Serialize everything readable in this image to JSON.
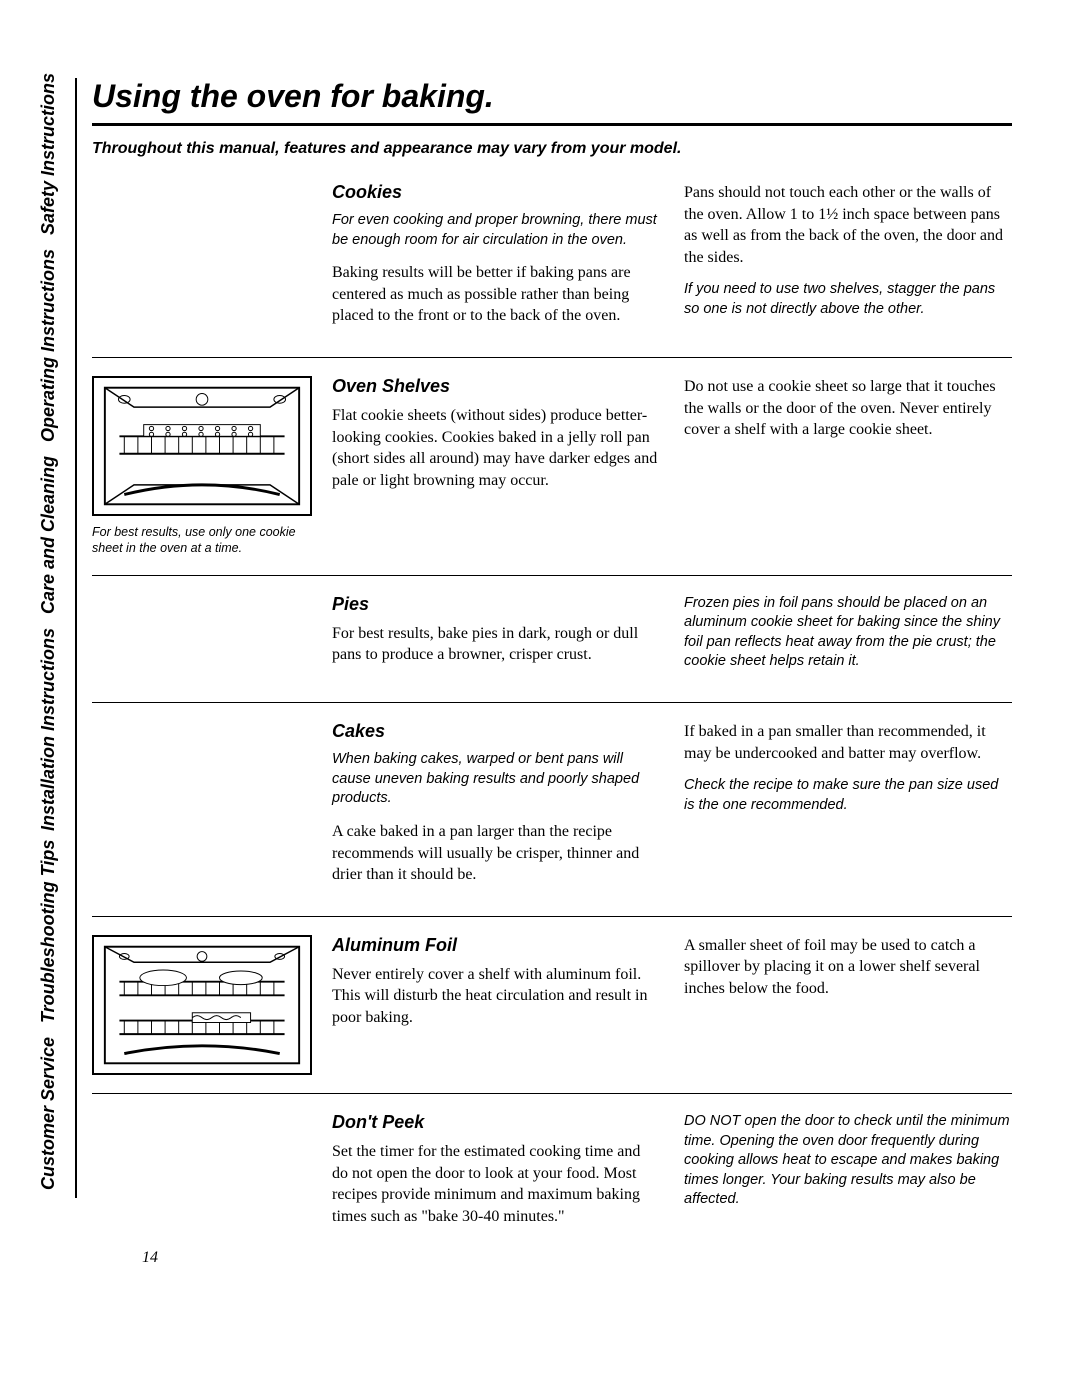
{
  "page_number": "14",
  "title": "Using the oven for baking.",
  "intro": "Throughout this manual, features and appearance may vary from your model.",
  "sidebar": {
    "labels": [
      "Safety Instructions",
      "Operating Instructions",
      "Care and Cleaning",
      "Installation Instructions",
      "Troubleshooting Tips",
      "Customer Service"
    ]
  },
  "colors": {
    "text": "#000000",
    "background": "#ffffff",
    "rule": "#000000"
  },
  "sections": [
    {
      "id": "cookies",
      "heading": "Cookies",
      "figure": null,
      "left": [
        {
          "style": "em",
          "text": "For even cooking and proper browning, there must be enough room for air circulation in the oven."
        },
        {
          "style": "body",
          "text": "Baking results will be better if baking pans are centered as much as possible rather than being placed to the front or to the back of the oven."
        }
      ],
      "right": [
        {
          "style": "body",
          "text": "Pans should not touch each other or the walls of the oven. Allow 1 to 1½ inch space between pans as well as from the back of the oven, the door and the sides."
        },
        {
          "style": "em",
          "text": "If you need to use two shelves, stagger the pans so one is not directly above the other."
        }
      ]
    },
    {
      "id": "oven-shelves",
      "heading": "Oven Shelves",
      "figure": {
        "kind": "single-rack",
        "caption": "For best results, use only one cookie sheet in the oven at a time."
      },
      "left": [
        {
          "style": "body",
          "text": "Flat cookie sheets (without sides) produce better-looking cookies. Cookies baked in a jelly roll pan (short sides all around) may have darker edges and pale or light browning may occur."
        }
      ],
      "right": [
        {
          "style": "body",
          "text": "Do not use a cookie sheet so large that it touches the walls or the door of the oven. Never entirely cover a shelf with a large cookie sheet."
        }
      ]
    },
    {
      "id": "pies",
      "heading": "Pies",
      "figure": null,
      "left": [
        {
          "style": "body",
          "text": "For best results, bake pies in dark, rough or dull pans to produce a browner, crisper crust."
        }
      ],
      "right": [
        {
          "style": "em",
          "text": "Frozen pies in foil pans should be placed on an aluminum cookie sheet for baking since the shiny foil pan reflects heat away from the pie crust; the cookie sheet helps retain it."
        }
      ]
    },
    {
      "id": "cakes",
      "heading": "Cakes",
      "figure": null,
      "left": [
        {
          "style": "em",
          "text": "When baking cakes, warped or bent pans will cause uneven baking results and poorly shaped products."
        },
        {
          "style": "body",
          "text": "A cake baked in a pan larger than the recipe recommends will usually be crisper, thinner and drier than it should be."
        }
      ],
      "right": [
        {
          "style": "body",
          "text": "If baked in a pan smaller than recommended, it may be undercooked and batter may overflow."
        },
        {
          "style": "em",
          "text": "Check the recipe to make sure the pan size used is the one recommended."
        }
      ]
    },
    {
      "id": "aluminum-foil",
      "heading": "Aluminum Foil",
      "figure": {
        "kind": "two-rack",
        "caption": ""
      },
      "left": [
        {
          "style": "body",
          "text": "Never entirely cover a shelf with aluminum foil. This will disturb the heat circulation and result in poor baking."
        }
      ],
      "right": [
        {
          "style": "body",
          "text": "A smaller sheet of foil may be used to catch a spillover by placing it on a lower shelf several inches below the food."
        }
      ]
    },
    {
      "id": "dont-peek",
      "heading": "Don't Peek",
      "figure": null,
      "left": [
        {
          "style": "body",
          "text": "Set the timer for the estimated cooking time and do not open the door to look at your food. Most recipes provide minimum and maximum baking times such as \"bake 30-40 minutes.\""
        }
      ],
      "right": [
        {
          "style": "em",
          "text": "DO NOT open the door to check until the minimum time. Opening the oven door frequently during cooking allows heat to escape and makes baking times longer. Your baking results may also be affected."
        }
      ]
    }
  ]
}
